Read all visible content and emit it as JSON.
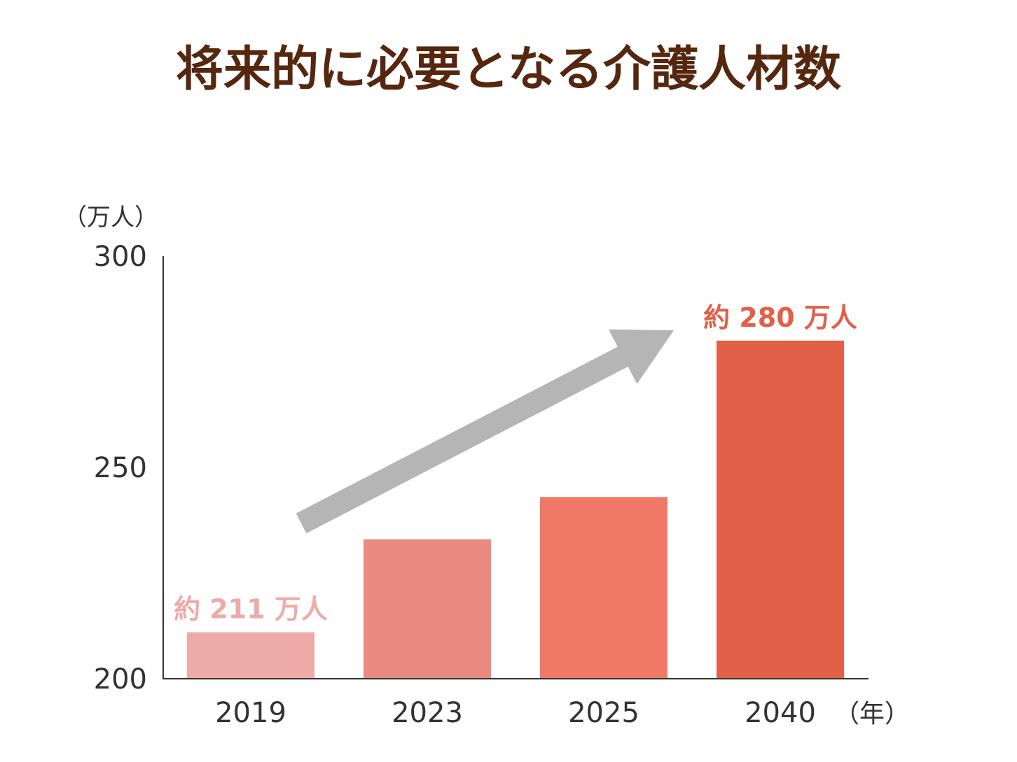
{
  "chart_data": {
    "type": "bar",
    "title": "将来的に必要となる介護人材数",
    "y_unit": "（万人）",
    "x_unit": "（年）",
    "categories": [
      "2019",
      "2023",
      "2025",
      "2040"
    ],
    "values": [
      211,
      233,
      243,
      280
    ],
    "ylim": [
      200,
      300
    ],
    "yticks": [
      200,
      250,
      300
    ],
    "grid": false,
    "legend": "none",
    "bar_colors": [
      "#eeaaa7",
      "#ea8a80",
      "#ef7966",
      "#e25f48"
    ],
    "annotation_color": "#b5b5b5",
    "data_labels": [
      {
        "category": "2019",
        "text": "約 211 万人",
        "color": "#eeaaa7"
      },
      {
        "category": "2040",
        "text": "約 280 万人",
        "color": "#e25f48"
      }
    ]
  }
}
